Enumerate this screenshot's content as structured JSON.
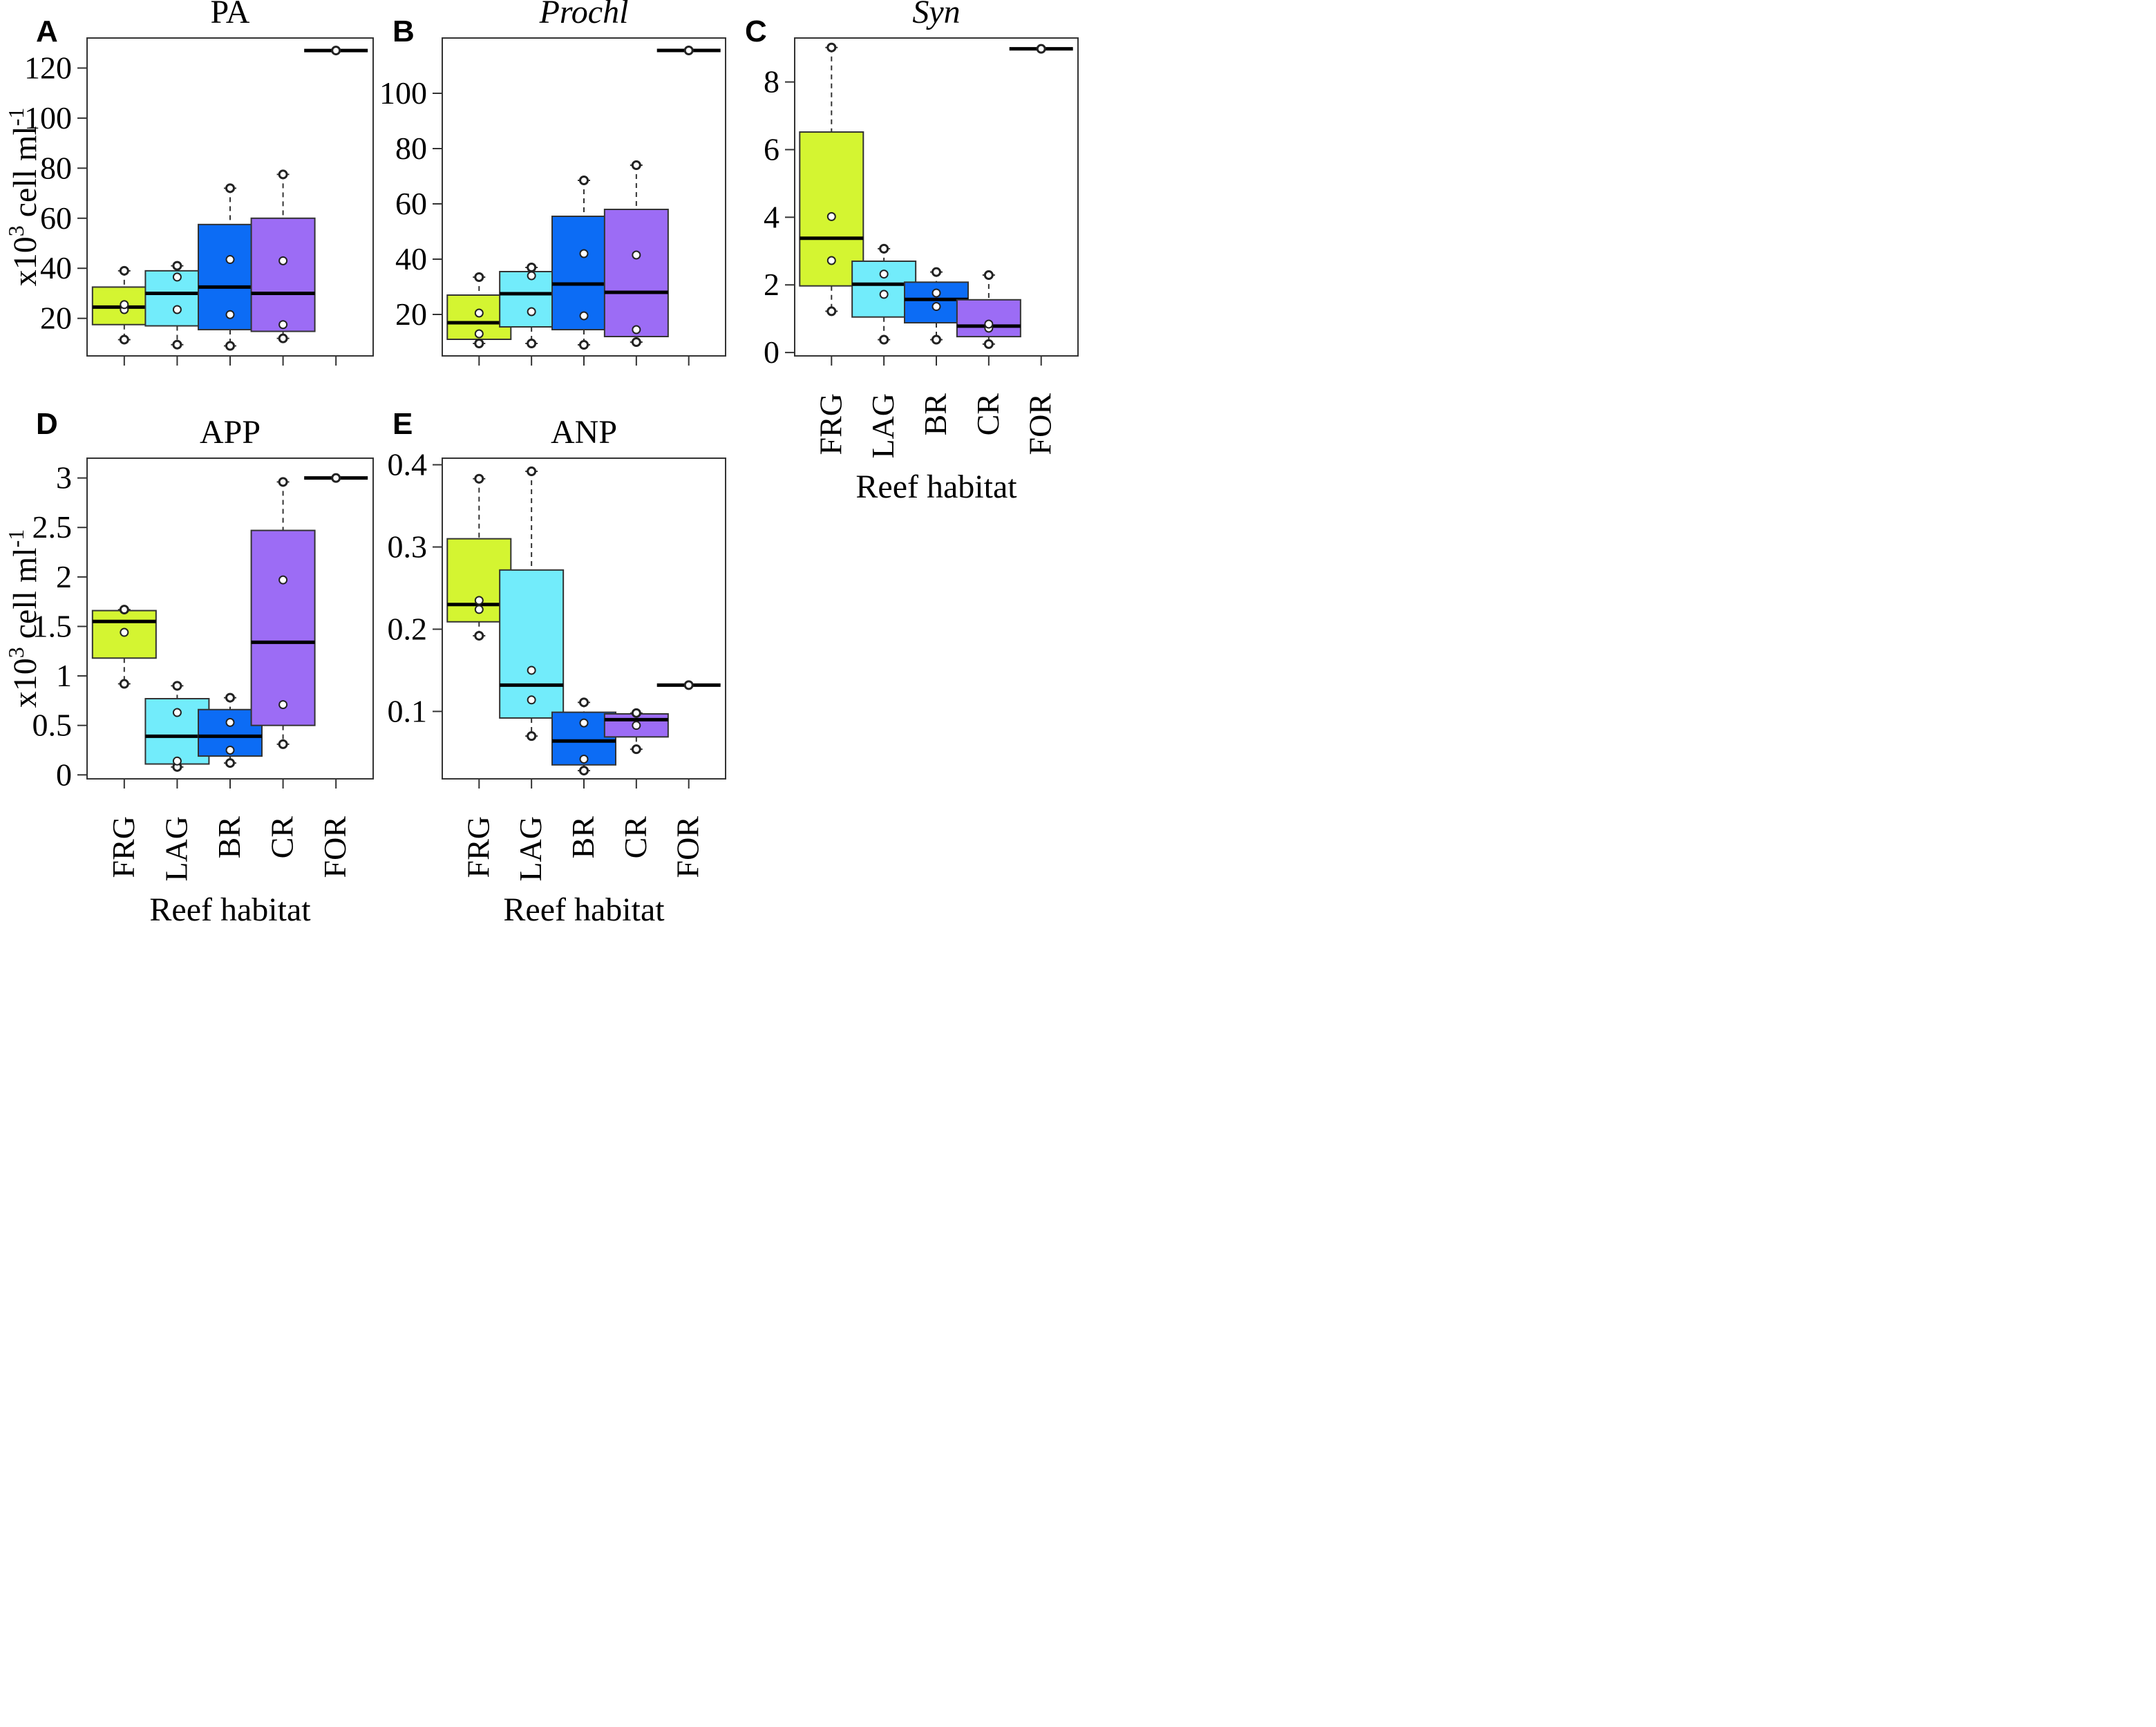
{
  "figure": {
    "y_axis_label": "x10",
    "y_axis_label_exp": "3",
    "y_axis_label_rest": " cell ml",
    "y_axis_label_rest_exp": "-1",
    "x_axis_label": "Reef habitat"
  },
  "colors": {
    "FRG": "#d4f531",
    "LAG": "#72ecfb",
    "BR": "#0c6cf5",
    "CR": "#9c6cf5",
    "FOR": "#000000"
  },
  "chart_data": [
    {
      "panel": "A",
      "title": "PA",
      "title_italic": false,
      "type": "box",
      "categories": [
        "FRG",
        "LAG",
        "BR",
        "CR",
        "FOR"
      ],
      "ylim": [
        5,
        132
      ],
      "yticks": [
        20,
        40,
        60,
        80,
        100,
        120
      ],
      "show_xticklabels": false,
      "show_xlabel": false,
      "show_ylabel": true,
      "boxes": [
        {
          "cat": "FRG",
          "min": 11.5,
          "q1": 17.5,
          "median": 24.5,
          "q3": 32.5,
          "max": 39.0,
          "points": [
            23.5,
            25.5
          ]
        },
        {
          "cat": "LAG",
          "min": 9.5,
          "q1": 17.0,
          "median": 30.0,
          "q3": 39.0,
          "max": 41.0,
          "points": [
            23.5,
            36.5
          ]
        },
        {
          "cat": "BR",
          "min": 9.0,
          "q1": 15.5,
          "median": 32.5,
          "q3": 57.5,
          "max": 72.0,
          "points": [
            21.5,
            43.5
          ]
        },
        {
          "cat": "CR",
          "min": 12.0,
          "q1": 14.8,
          "median": 30.0,
          "q3": 60.0,
          "max": 77.5,
          "points": [
            17.5,
            43.0
          ]
        },
        {
          "cat": "FOR",
          "min": 127.0,
          "q1": 127.0,
          "median": 127.0,
          "q3": 127.0,
          "max": 127.0,
          "points": []
        }
      ]
    },
    {
      "panel": "B",
      "title": "Prochl",
      "title_italic": true,
      "type": "box",
      "categories": [
        "FRG",
        "LAG",
        "BR",
        "CR",
        "FOR"
      ],
      "ylim": [
        5,
        120
      ],
      "yticks": [
        20,
        40,
        60,
        80,
        100
      ],
      "show_xticklabels": false,
      "show_xlabel": false,
      "show_ylabel": false,
      "boxes": [
        {
          "cat": "FRG",
          "min": 9.5,
          "q1": 11.0,
          "median": 17.0,
          "q3": 27.0,
          "max": 33.5,
          "points": [
            13.0,
            20.5
          ]
        },
        {
          "cat": "LAG",
          "min": 9.5,
          "q1": 15.5,
          "median": 27.5,
          "q3": 35.5,
          "max": 37.0,
          "points": [
            21.0,
            34.0
          ]
        },
        {
          "cat": "BR",
          "min": 9.0,
          "q1": 14.5,
          "median": 31.0,
          "q3": 55.5,
          "max": 68.5,
          "points": [
            19.5,
            42.0
          ]
        },
        {
          "cat": "CR",
          "min": 10.0,
          "q1": 12.0,
          "median": 28.0,
          "q3": 58.0,
          "max": 74.0,
          "points": [
            14.5,
            41.5
          ]
        },
        {
          "cat": "FOR",
          "min": 115.5,
          "q1": 115.5,
          "median": 115.5,
          "q3": 115.5,
          "max": 115.5,
          "points": []
        }
      ]
    },
    {
      "panel": "C",
      "title": "Syn",
      "title_italic": true,
      "type": "box",
      "categories": [
        "FRG",
        "LAG",
        "BR",
        "CR",
        "FOR"
      ],
      "ylim": [
        -0.1,
        9.3
      ],
      "yticks": [
        0,
        2,
        4,
        6,
        8
      ],
      "show_xticklabels": true,
      "show_xlabel": true,
      "show_ylabel": false,
      "boxes": [
        {
          "cat": "FRG",
          "min": 1.22,
          "q1": 1.97,
          "median": 3.38,
          "q3": 6.52,
          "max": 9.02,
          "points": [
            2.72,
            4.02
          ]
        },
        {
          "cat": "LAG",
          "min": 0.38,
          "q1": 1.05,
          "median": 2.02,
          "q3": 2.7,
          "max": 3.07,
          "points": [
            1.72,
            2.32
          ]
        },
        {
          "cat": "BR",
          "min": 0.38,
          "q1": 0.88,
          "median": 1.57,
          "q3": 2.08,
          "max": 2.38,
          "points": [
            1.36,
            1.76
          ]
        },
        {
          "cat": "CR",
          "min": 0.25,
          "q1": 0.47,
          "median": 0.78,
          "q3": 1.56,
          "max": 2.29,
          "points": [
            0.72,
            0.84
          ]
        },
        {
          "cat": "FOR",
          "min": 8.98,
          "q1": 8.98,
          "median": 8.98,
          "q3": 8.98,
          "max": 8.98,
          "points": []
        }
      ]
    },
    {
      "panel": "D",
      "title": "APP",
      "title_italic": false,
      "type": "box",
      "categories": [
        "FRG",
        "LAG",
        "BR",
        "CR",
        "FOR"
      ],
      "ylim": [
        -0.04,
        3.2
      ],
      "yticks": [
        0,
        0.5,
        1,
        1.5,
        2,
        2.5,
        3
      ],
      "ytick_labels": [
        "0",
        "0.5",
        "1",
        "1.5",
        "2",
        "2.5",
        "3"
      ],
      "show_xticklabels": true,
      "show_xlabel": true,
      "show_ylabel": true,
      "boxes": [
        {
          "cat": "FRG",
          "min": 0.92,
          "q1": 1.18,
          "median": 1.55,
          "q3": 1.66,
          "max": 1.67,
          "points": [
            1.44
          ]
        },
        {
          "cat": "LAG",
          "min": 0.08,
          "q1": 0.11,
          "median": 0.39,
          "q3": 0.77,
          "max": 0.9,
          "points": [
            0.14,
            0.63
          ]
        },
        {
          "cat": "BR",
          "min": 0.12,
          "q1": 0.19,
          "median": 0.39,
          "q3": 0.66,
          "max": 0.78,
          "points": [
            0.25,
            0.53
          ]
        },
        {
          "cat": "CR",
          "min": 0.31,
          "q1": 0.5,
          "median": 1.34,
          "q3": 2.47,
          "max": 2.96,
          "points": [
            0.71,
            1.97
          ]
        },
        {
          "cat": "FOR",
          "min": 3.0,
          "q1": 3.0,
          "median": 3.0,
          "q3": 3.0,
          "max": 3.0,
          "points": []
        }
      ]
    },
    {
      "panel": "E",
      "title": "ANP",
      "title_italic": false,
      "type": "box",
      "categories": [
        "FRG",
        "LAG",
        "BR",
        "CR",
        "FOR"
      ],
      "ylim": [
        0.018,
        0.408
      ],
      "yticks": [
        0.1,
        0.2,
        0.3,
        0.4
      ],
      "ytick_labels": [
        "0.1",
        "0.2",
        "0.3",
        "0.4"
      ],
      "show_xticklabels": true,
      "show_xlabel": true,
      "show_ylabel": false,
      "boxes": [
        {
          "cat": "FRG",
          "min": 0.192,
          "q1": 0.209,
          "median": 0.23,
          "q3": 0.31,
          "max": 0.383,
          "points": [
            0.224,
            0.235
          ]
        },
        {
          "cat": "LAG",
          "min": 0.07,
          "q1": 0.092,
          "median": 0.132,
          "q3": 0.272,
          "max": 0.392,
          "points": [
            0.114,
            0.15
          ]
        },
        {
          "cat": "BR",
          "min": 0.028,
          "q1": 0.035,
          "median": 0.064,
          "q3": 0.099,
          "max": 0.111,
          "points": [
            0.042,
            0.086
          ]
        },
        {
          "cat": "CR",
          "min": 0.054,
          "q1": 0.069,
          "median": 0.09,
          "q3": 0.097,
          "max": 0.098,
          "points": [
            0.083
          ]
        },
        {
          "cat": "FOR",
          "min": 0.132,
          "q1": 0.132,
          "median": 0.132,
          "q3": 0.132,
          "max": 0.132,
          "points": []
        }
      ]
    }
  ]
}
